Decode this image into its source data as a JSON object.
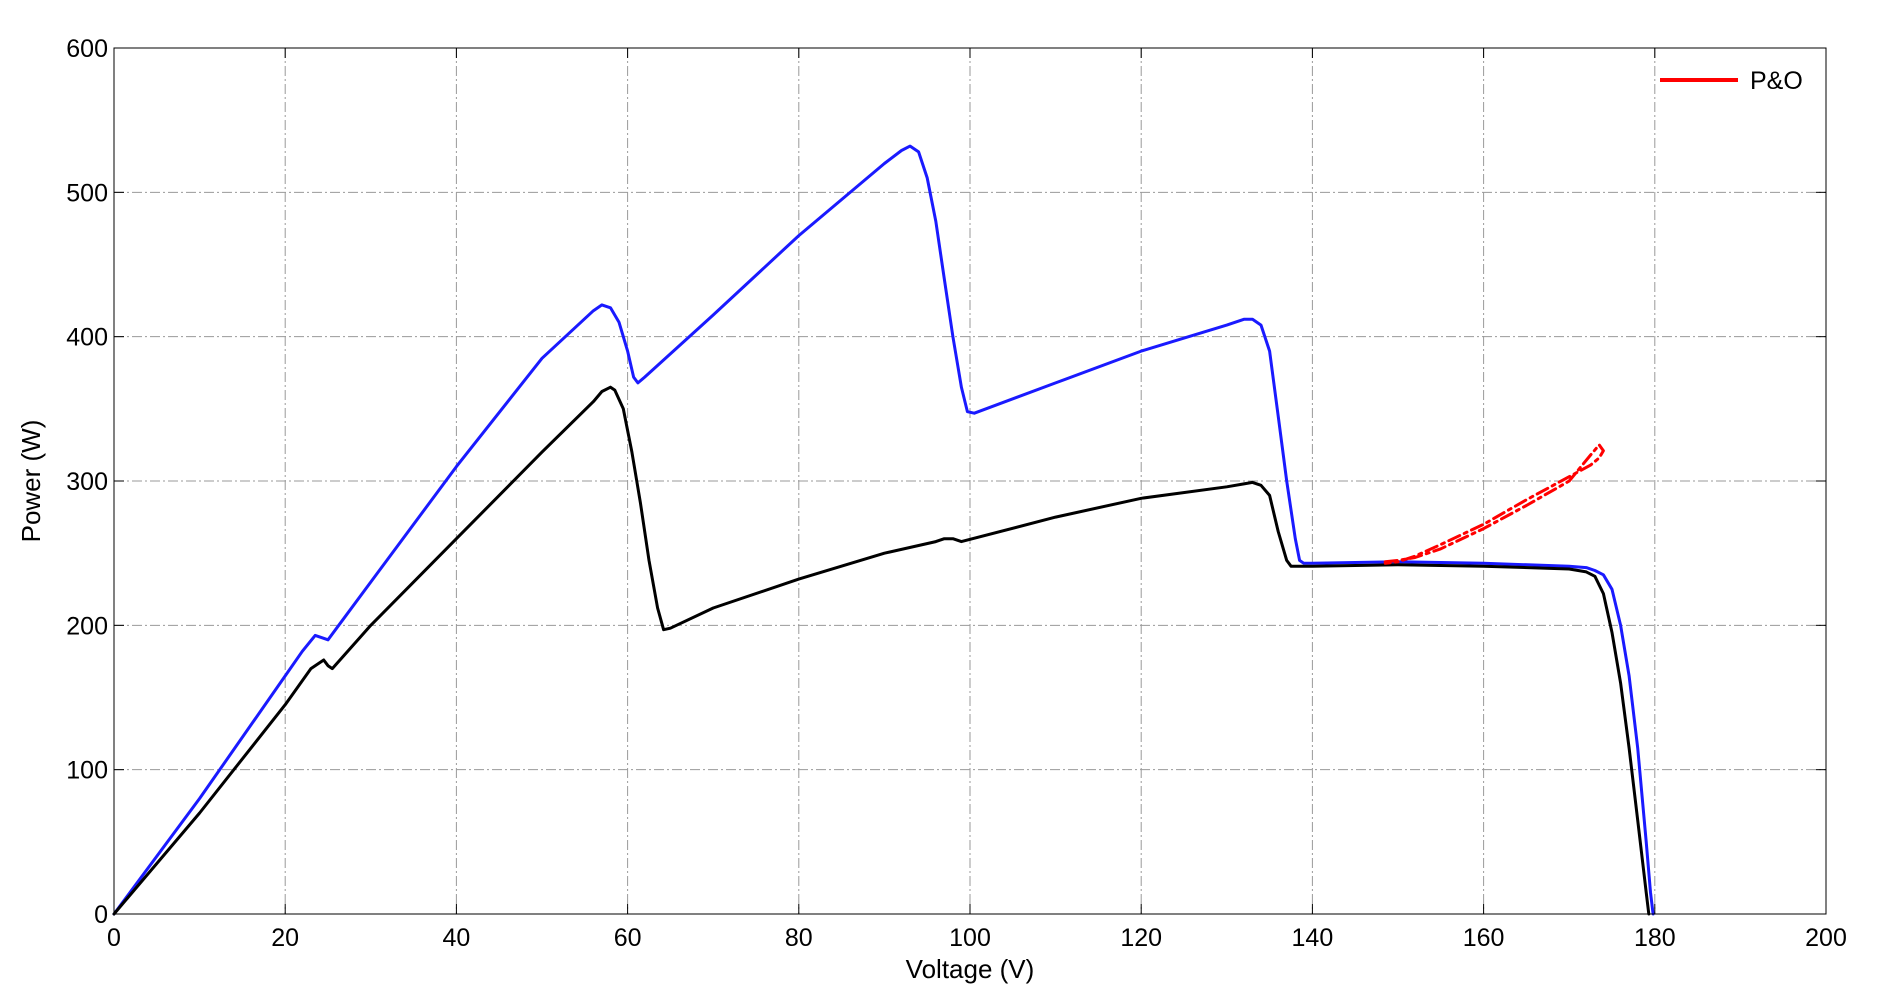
{
  "chart_data": {
    "type": "line",
    "title": "",
    "xlabel": "Voltage (V)",
    "ylabel": "Power (W)",
    "xlim": [
      0,
      200
    ],
    "ylim": [
      0,
      600
    ],
    "xticks": [
      "0",
      "20",
      "40",
      "60",
      "80",
      "100",
      "120",
      "140",
      "160",
      "180",
      "200"
    ],
    "yticks": [
      "0",
      "100",
      "200",
      "300",
      "400",
      "500",
      "600"
    ],
    "grid": true,
    "legend": {
      "placement": "top-right",
      "entries": [
        "P&O"
      ]
    },
    "colors": {
      "blue_curve": "#1a1aff",
      "black_curve": "#000000",
      "po": "#ff0000"
    },
    "series": [
      {
        "color": "#1a1aff",
        "x": [
          0,
          10,
          20,
          22,
          23.5,
          24.5,
          25,
          26,
          30,
          40,
          50,
          56,
          57,
          58,
          59,
          60,
          60.7,
          61.2,
          62,
          70,
          80,
          90,
          92,
          93,
          94,
          95,
          96,
          97,
          98,
          99,
          99.7,
          100.5,
          110,
          120,
          130,
          132,
          133,
          134,
          135,
          136,
          137,
          138,
          138.5,
          139,
          140,
          150,
          160,
          170,
          172,
          173,
          174,
          175,
          176,
          177,
          178,
          179,
          179.5,
          179.8
        ],
        "y": [
          0,
          80,
          165,
          182,
          193,
          191,
          190,
          198,
          230,
          310,
          385,
          418,
          422,
          420,
          410,
          390,
          372,
          368,
          372,
          415,
          470,
          520,
          529,
          532,
          528,
          510,
          480,
          440,
          400,
          365,
          348,
          347,
          368,
          390,
          408,
          412,
          412,
          408,
          390,
          345,
          300,
          260,
          245,
          243,
          243,
          244,
          243,
          241,
          240,
          238,
          235,
          225,
          200,
          165,
          115,
          50,
          15,
          0
        ]
      },
      {
        "color": "#000000",
        "x": [
          0,
          10,
          20,
          23,
          24.5,
          25,
          25.5,
          30,
          40,
          50,
          56,
          57,
          58,
          58.5,
          59.5,
          60.5,
          61.5,
          62.5,
          63.5,
          64.2,
          65,
          70,
          80,
          90,
          96,
          97,
          98,
          99,
          110,
          120,
          130,
          132,
          133,
          134,
          135,
          136,
          137,
          137.5,
          140,
          150,
          160,
          170,
          172,
          173,
          174,
          175,
          176,
          177,
          178,
          179,
          179.3
        ],
        "y": [
          0,
          70,
          145,
          170,
          176,
          172,
          170,
          200,
          260,
          320,
          355,
          362,
          365,
          363,
          350,
          320,
          285,
          245,
          212,
          197,
          198,
          212,
          232,
          250,
          258,
          260,
          260,
          258,
          275,
          288,
          296,
          298,
          299,
          297,
          290,
          265,
          245,
          241,
          241,
          242,
          241,
          239,
          237,
          234,
          222,
          195,
          160,
          115,
          65,
          15,
          0
        ]
      },
      {
        "name": "P&O",
        "color": "#ff0000",
        "style": "dashed",
        "x": [
          148.5,
          150,
          152,
          155,
          160,
          165,
          170,
          172.5,
          173.5,
          174,
          173.5,
          172.5,
          170,
          165,
          160,
          155,
          152,
          150,
          148.5
        ],
        "y": [
          244,
          245,
          247,
          253,
          267,
          283,
          300,
          318,
          325,
          321,
          316,
          311,
          303,
          287,
          270,
          256,
          248,
          244,
          243
        ]
      }
    ]
  }
}
